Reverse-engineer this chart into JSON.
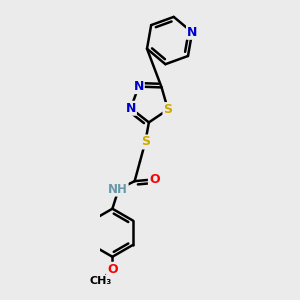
{
  "bg_color": "#ebebeb",
  "atom_colors": {
    "C": "#000000",
    "N": "#0000cc",
    "S": "#ccaa00",
    "O": "#ff0000",
    "H": "#6699aa"
  },
  "bond_color": "#000000",
  "bond_width": 1.8,
  "font_size": 9
}
